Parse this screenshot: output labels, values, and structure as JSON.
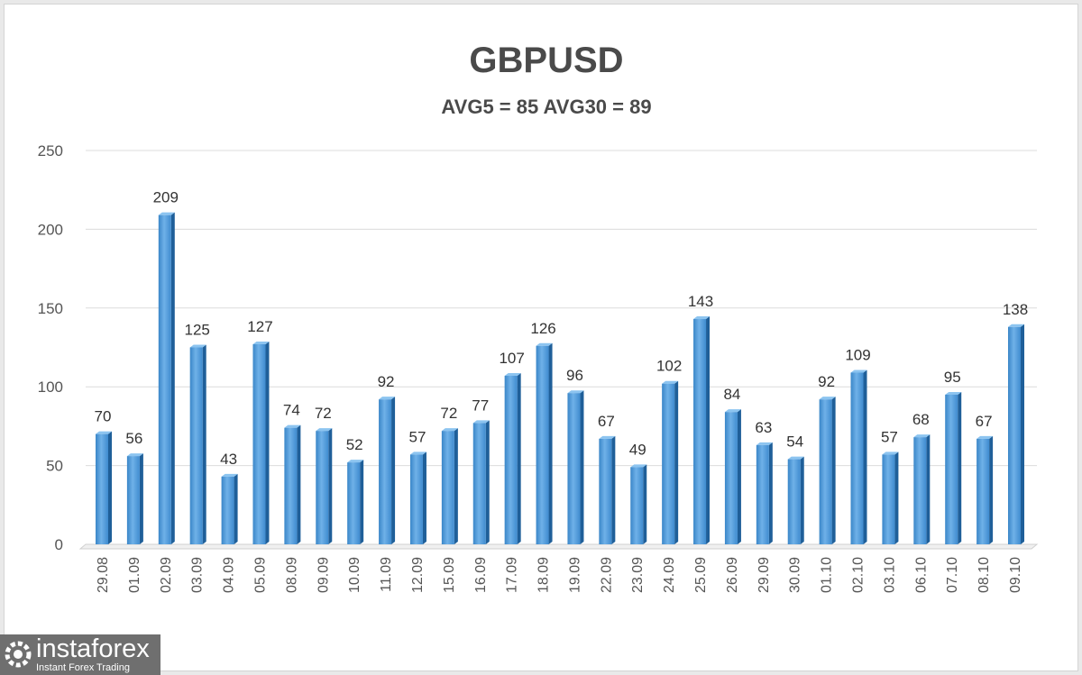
{
  "chart_data": {
    "type": "bar",
    "title": "GBPUSD",
    "subtitle": "AVG5 = 85 AVG30 = 89",
    "categories": [
      "29.08",
      "01.09",
      "02.09",
      "03.09",
      "04.09",
      "05.09",
      "08.09",
      "09.09",
      "10.09",
      "11.09",
      "12.09",
      "15.09",
      "16.09",
      "17.09",
      "18.09",
      "19.09",
      "22.09",
      "23.09",
      "24.09",
      "25.09",
      "26.09",
      "29.09",
      "30.09",
      "01.10",
      "02.10",
      "03.10",
      "06.10",
      "07.10",
      "08.10",
      "09.10"
    ],
    "values": [
      70,
      56,
      209,
      125,
      43,
      127,
      74,
      72,
      52,
      92,
      57,
      72,
      77,
      107,
      126,
      96,
      67,
      49,
      102,
      143,
      84,
      63,
      54,
      92,
      109,
      57,
      68,
      95,
      67,
      138
    ],
    "ylim": [
      0,
      250
    ],
    "yticks": [
      0,
      50,
      100,
      150,
      200,
      250
    ],
    "grid": true,
    "bar_color": "#4f97d6",
    "xlabel": "",
    "ylabel": ""
  },
  "logo": {
    "name": "instaforex",
    "tagline": "Instant Forex Trading"
  }
}
